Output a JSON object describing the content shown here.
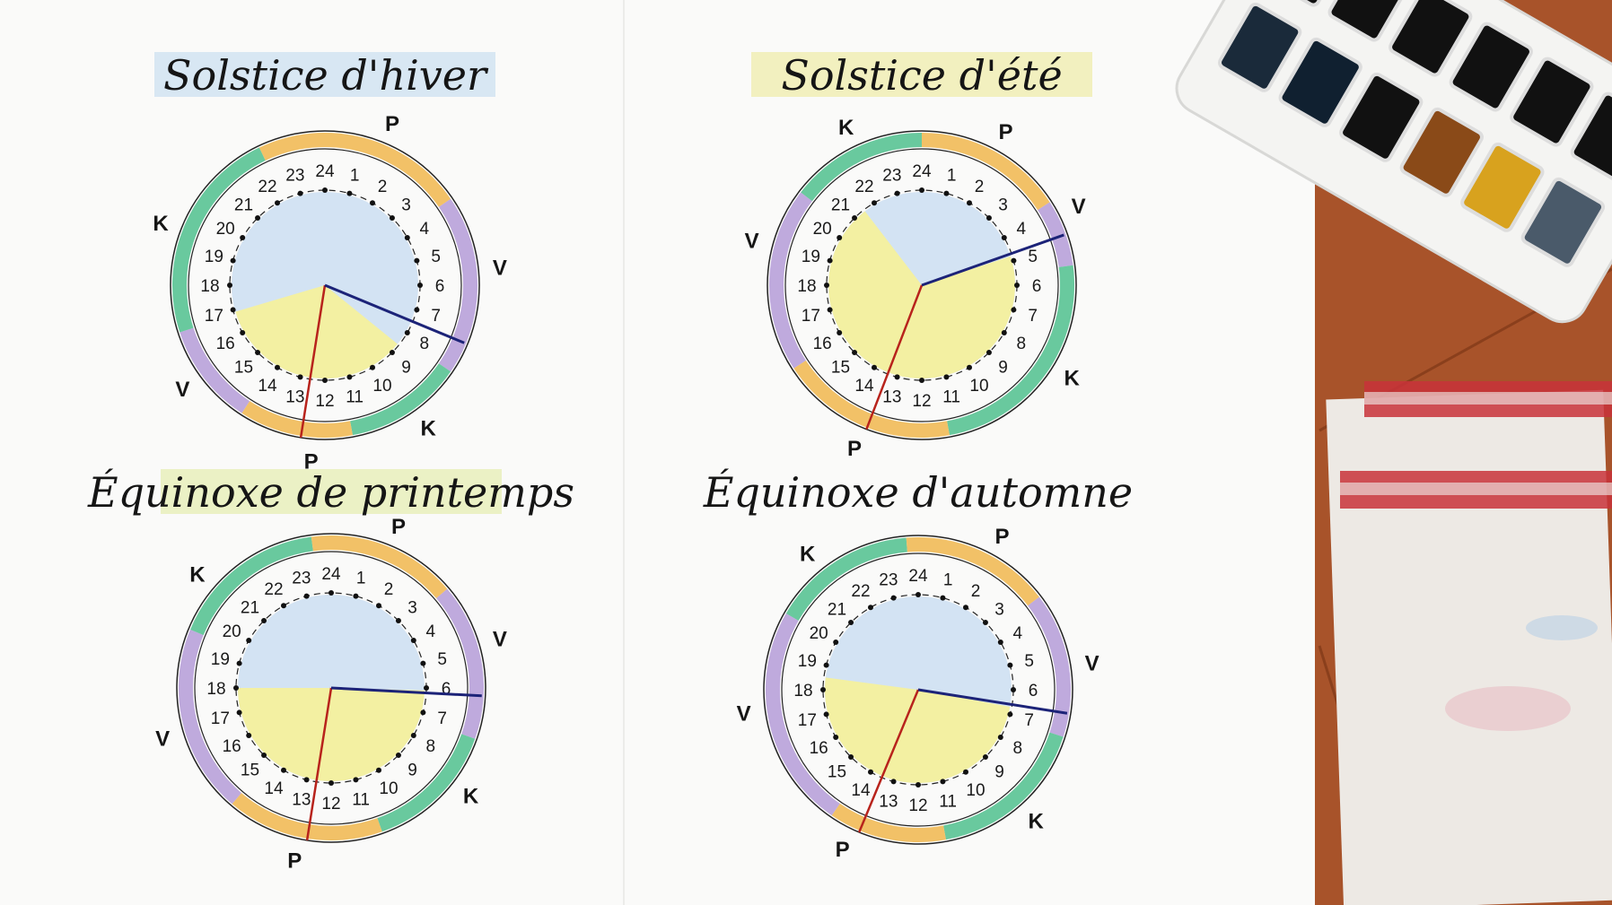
{
  "colors": {
    "P": "#f0b64e",
    "V": "#b49bd8",
    "K": "#4fbf8e",
    "day": "#f3f0a2",
    "night": "#d3e3f3",
    "red_line": "#b8231c",
    "blue_line": "#1c2378"
  },
  "hours": [
    "24",
    "1",
    "2",
    "3",
    "4",
    "5",
    "6",
    "7",
    "8",
    "9",
    "10",
    "11",
    "12",
    "13",
    "14",
    "15",
    "16",
    "17",
    "18",
    "19",
    "20",
    "21",
    "22",
    "23"
  ],
  "diagrams": [
    {
      "title": "Solstice d'hiver",
      "ring": [
        {
          "letter": "P",
          "from": 22.3,
          "to": 3.7
        },
        {
          "letter": "V",
          "from": 3.7,
          "to": 8.3
        },
        {
          "letter": "K",
          "from": 8.3,
          "to": 11.3
        },
        {
          "letter": "P",
          "from": 11.3,
          "to": 14.2
        },
        {
          "letter": "V",
          "from": 14.2,
          "to": 16.8
        },
        {
          "letter": "K",
          "from": 16.8,
          "to": 22.3
        }
      ],
      "labels": [
        {
          "text": "P",
          "hour": 1.5
        },
        {
          "text": "V",
          "hour": 5.6
        },
        {
          "text": "K",
          "hour": 9.6
        },
        {
          "text": "P",
          "hour": 12.3
        },
        {
          "text": "V",
          "hour": 15.6
        },
        {
          "text": "K",
          "hour": 19.4
        }
      ],
      "day_span": [
        8.6,
        16.9
      ],
      "red_hour": 12.6,
      "blue_hour": 7.5
    },
    {
      "title": "Solstice d'été",
      "ring": [
        {
          "letter": "K",
          "from": 20.5,
          "to": 24
        },
        {
          "letter": "P",
          "from": 0,
          "to": 3.8
        },
        {
          "letter": "V",
          "from": 3.8,
          "to": 5.5
        },
        {
          "letter": "K",
          "from": 5.5,
          "to": 11.3
        },
        {
          "letter": "P",
          "from": 11.3,
          "to": 15.8
        },
        {
          "letter": "V",
          "from": 15.8,
          "to": 20.5
        }
      ],
      "labels": [
        {
          "text": "K",
          "hour": 22.3
        },
        {
          "text": "P",
          "hour": 1.9
        },
        {
          "text": "V",
          "hour": 4.2
        },
        {
          "text": "K",
          "hour": 8.1
        },
        {
          "text": "P",
          "hour": 13.5
        },
        {
          "text": "V",
          "hour": 19
        }
      ],
      "day_span": [
        4.8,
        21.5
      ],
      "red_hour": 13.4,
      "blue_hour": 4.7
    },
    {
      "title": "Équinoxe de printemps",
      "ring": [
        {
          "letter": "K",
          "from": 19.5,
          "to": 23.5
        },
        {
          "letter": "P",
          "from": 23.5,
          "to": 3.3
        },
        {
          "letter": "V",
          "from": 3.3,
          "to": 7.3
        },
        {
          "letter": "K",
          "from": 7.3,
          "to": 10.7
        },
        {
          "letter": "P",
          "from": 10.7,
          "to": 14.7
        },
        {
          "letter": "V",
          "from": 14.7,
          "to": 19.5
        }
      ],
      "labels": [
        {
          "text": "P",
          "hour": 1.5
        },
        {
          "text": "V",
          "hour": 4.9
        },
        {
          "text": "K",
          "hour": 8.5
        },
        {
          "text": "P",
          "hour": 12.8
        },
        {
          "text": "V",
          "hour": 16.9
        },
        {
          "text": "K",
          "hour": 20.7
        }
      ],
      "day_span": [
        6.1,
        18
      ],
      "red_hour": 12.6,
      "blue_hour": 6.2
    },
    {
      "title": "Équinoxe d'automne",
      "ring": [
        {
          "letter": "K",
          "from": 20,
          "to": 23.7
        },
        {
          "letter": "P",
          "from": 23.7,
          "to": 3.5
        },
        {
          "letter": "V",
          "from": 3.5,
          "to": 7.2
        },
        {
          "letter": "K",
          "from": 7.2,
          "to": 11.3
        },
        {
          "letter": "P",
          "from": 11.3,
          "to": 14.3
        },
        {
          "letter": "V",
          "from": 14.3,
          "to": 20
        }
      ],
      "labels": [
        {
          "text": "P",
          "hour": 1.9
        },
        {
          "text": "V",
          "hour": 5.4
        },
        {
          "text": "K",
          "hour": 9.2
        },
        {
          "text": "P",
          "hour": 13.7
        },
        {
          "text": "V",
          "hour": 17.5
        },
        {
          "text": "K",
          "hour": 21.4
        }
      ],
      "day_span": [
        6.7,
        18.5
      ],
      "red_hour": 13.5,
      "blue_hour": 6.6
    }
  ]
}
